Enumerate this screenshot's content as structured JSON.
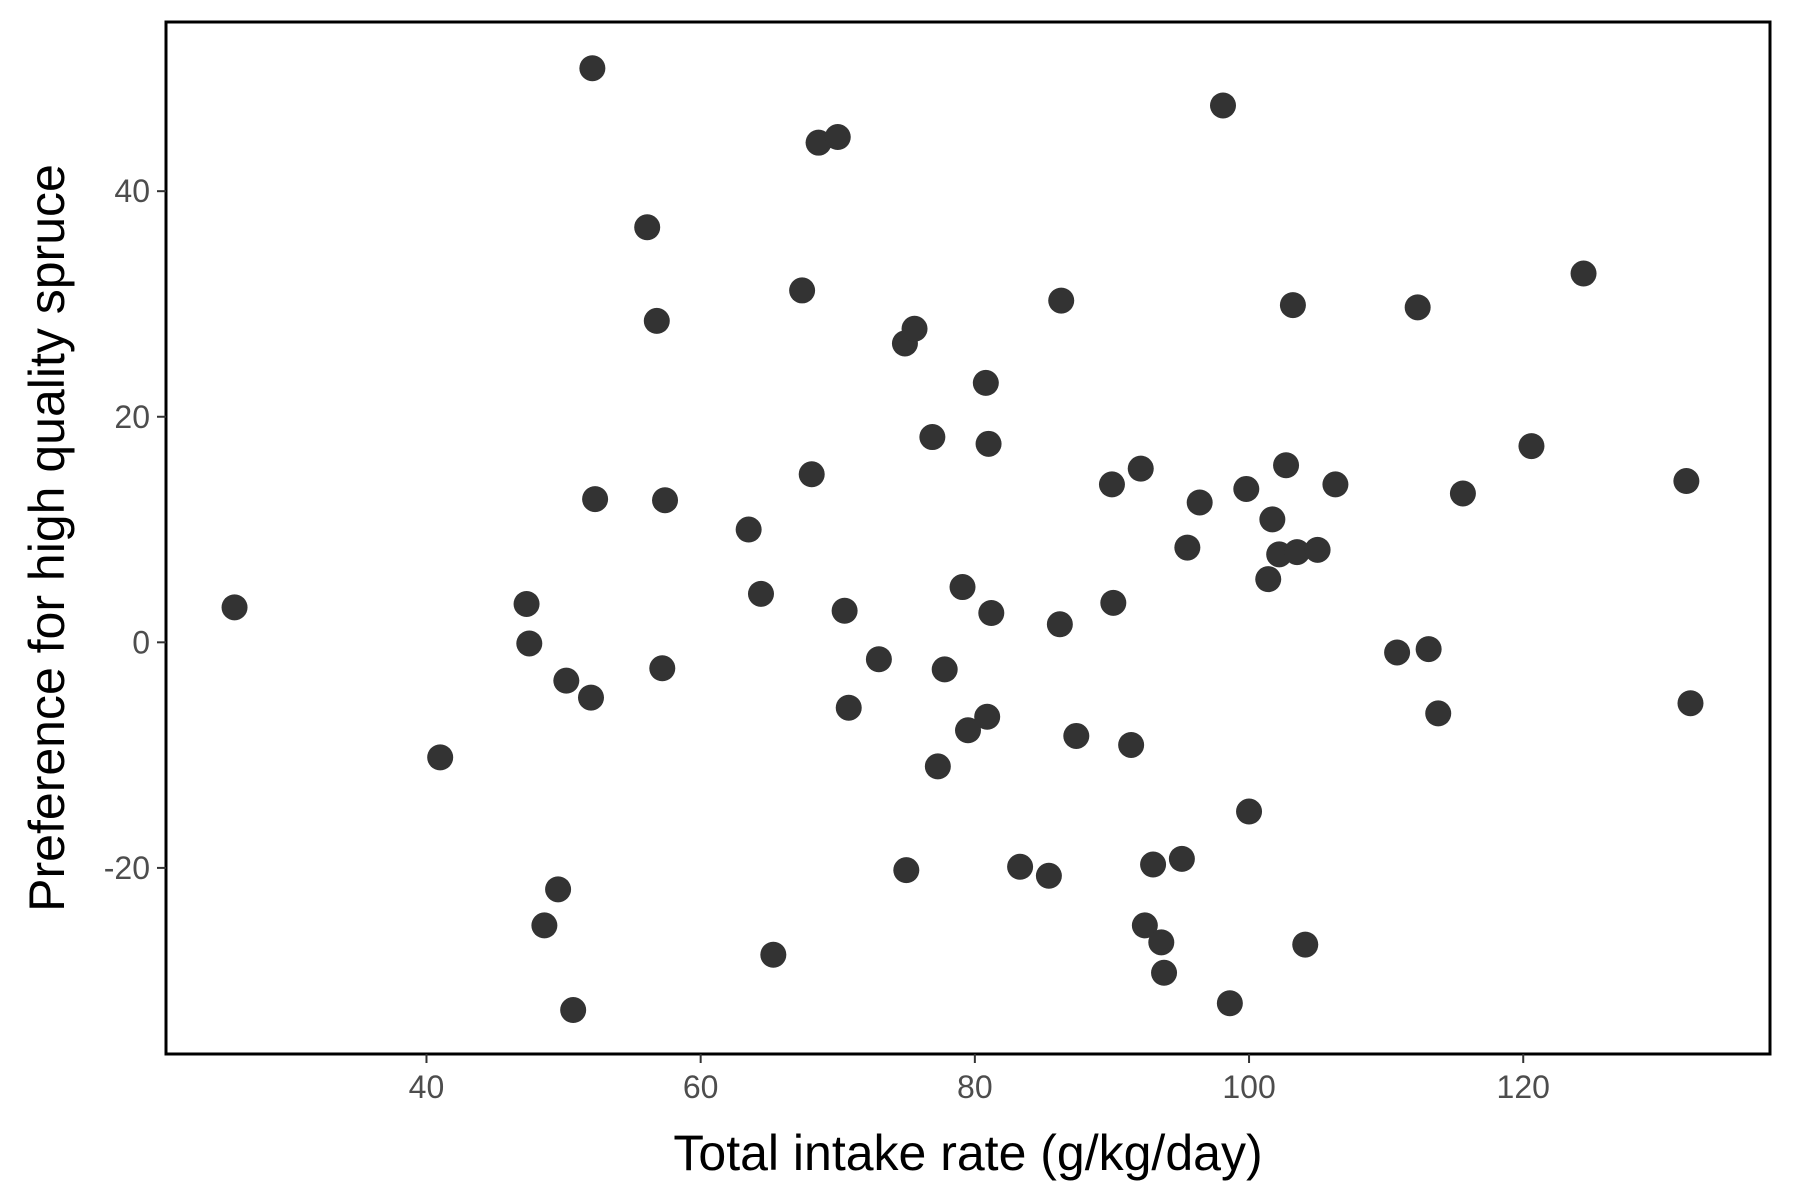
{
  "chart_data": {
    "type": "scatter",
    "xlabel": "Total intake rate (g/kg/day)",
    "ylabel": "Preference for high quality spruce",
    "xlim": [
      21,
      138
    ],
    "ylim": [
      -36.5,
      55
    ],
    "x_ticks": [
      40,
      60,
      80,
      100,
      120
    ],
    "y_ticks": [
      -20,
      0,
      20,
      40
    ],
    "grid": false,
    "point_color": "#333333",
    "points": [
      {
        "x": 26.0,
        "y": 3.1
      },
      {
        "x": 41.0,
        "y": -10.2
      },
      {
        "x": 47.3,
        "y": 3.4
      },
      {
        "x": 47.5,
        "y": -0.1
      },
      {
        "x": 48.6,
        "y": -25.1
      },
      {
        "x": 49.6,
        "y": -21.9
      },
      {
        "x": 50.2,
        "y": -3.4
      },
      {
        "x": 50.7,
        "y": -32.6
      },
      {
        "x": 52.0,
        "y": -4.9
      },
      {
        "x": 52.1,
        "y": 50.9
      },
      {
        "x": 52.3,
        "y": 12.7
      },
      {
        "x": 56.1,
        "y": 36.8
      },
      {
        "x": 56.8,
        "y": 28.5
      },
      {
        "x": 57.2,
        "y": -2.3
      },
      {
        "x": 57.4,
        "y": 12.6
      },
      {
        "x": 63.5,
        "y": 10.0
      },
      {
        "x": 64.4,
        "y": 4.3
      },
      {
        "x": 65.3,
        "y": -27.7
      },
      {
        "x": 67.4,
        "y": 31.2
      },
      {
        "x": 68.1,
        "y": 14.9
      },
      {
        "x": 68.6,
        "y": 44.3
      },
      {
        "x": 70.0,
        "y": 44.8
      },
      {
        "x": 70.5,
        "y": 2.8
      },
      {
        "x": 70.8,
        "y": -5.8
      },
      {
        "x": 73.0,
        "y": -1.5
      },
      {
        "x": 74.9,
        "y": 26.5
      },
      {
        "x": 75.0,
        "y": -20.2
      },
      {
        "x": 75.6,
        "y": 27.8
      },
      {
        "x": 76.9,
        "y": 18.2
      },
      {
        "x": 77.3,
        "y": -11.0
      },
      {
        "x": 77.8,
        "y": -2.4
      },
      {
        "x": 79.1,
        "y": 4.9
      },
      {
        "x": 79.5,
        "y": -7.8
      },
      {
        "x": 80.8,
        "y": 23.0
      },
      {
        "x": 80.9,
        "y": -6.6
      },
      {
        "x": 81.0,
        "y": 17.6
      },
      {
        "x": 81.2,
        "y": 2.6
      },
      {
        "x": 83.3,
        "y": -19.9
      },
      {
        "x": 85.4,
        "y": -20.7
      },
      {
        "x": 86.2,
        "y": 1.6
      },
      {
        "x": 86.3,
        "y": 30.3
      },
      {
        "x": 87.4,
        "y": -8.3
      },
      {
        "x": 90.0,
        "y": 14.0
      },
      {
        "x": 90.1,
        "y": 3.5
      },
      {
        "x": 91.4,
        "y": -9.1
      },
      {
        "x": 92.1,
        "y": 15.4
      },
      {
        "x": 92.4,
        "y": -25.1
      },
      {
        "x": 93.0,
        "y": -19.7
      },
      {
        "x": 93.6,
        "y": -26.6
      },
      {
        "x": 93.8,
        "y": -29.3
      },
      {
        "x": 95.1,
        "y": -19.2
      },
      {
        "x": 95.5,
        "y": 8.4
      },
      {
        "x": 96.4,
        "y": 12.4
      },
      {
        "x": 98.1,
        "y": 47.6
      },
      {
        "x": 98.6,
        "y": -32.0
      },
      {
        "x": 99.8,
        "y": 13.6
      },
      {
        "x": 100.0,
        "y": -15.0
      },
      {
        "x": 101.4,
        "y": 5.6
      },
      {
        "x": 101.7,
        "y": 10.9
      },
      {
        "x": 102.2,
        "y": 7.8
      },
      {
        "x": 102.7,
        "y": 15.7
      },
      {
        "x": 103.2,
        "y": 29.9
      },
      {
        "x": 103.5,
        "y": 8.0
      },
      {
        "x": 104.1,
        "y": -26.8
      },
      {
        "x": 105.0,
        "y": 8.2
      },
      {
        "x": 106.3,
        "y": 14.0
      },
      {
        "x": 110.8,
        "y": -0.9
      },
      {
        "x": 112.3,
        "y": 29.7
      },
      {
        "x": 113.1,
        "y": -0.6
      },
      {
        "x": 113.8,
        "y": -6.3
      },
      {
        "x": 115.6,
        "y": 13.2
      },
      {
        "x": 120.6,
        "y": 17.4
      },
      {
        "x": 124.4,
        "y": 32.7
      },
      {
        "x": 131.9,
        "y": 14.3
      },
      {
        "x": 132.2,
        "y": -5.4
      }
    ]
  }
}
